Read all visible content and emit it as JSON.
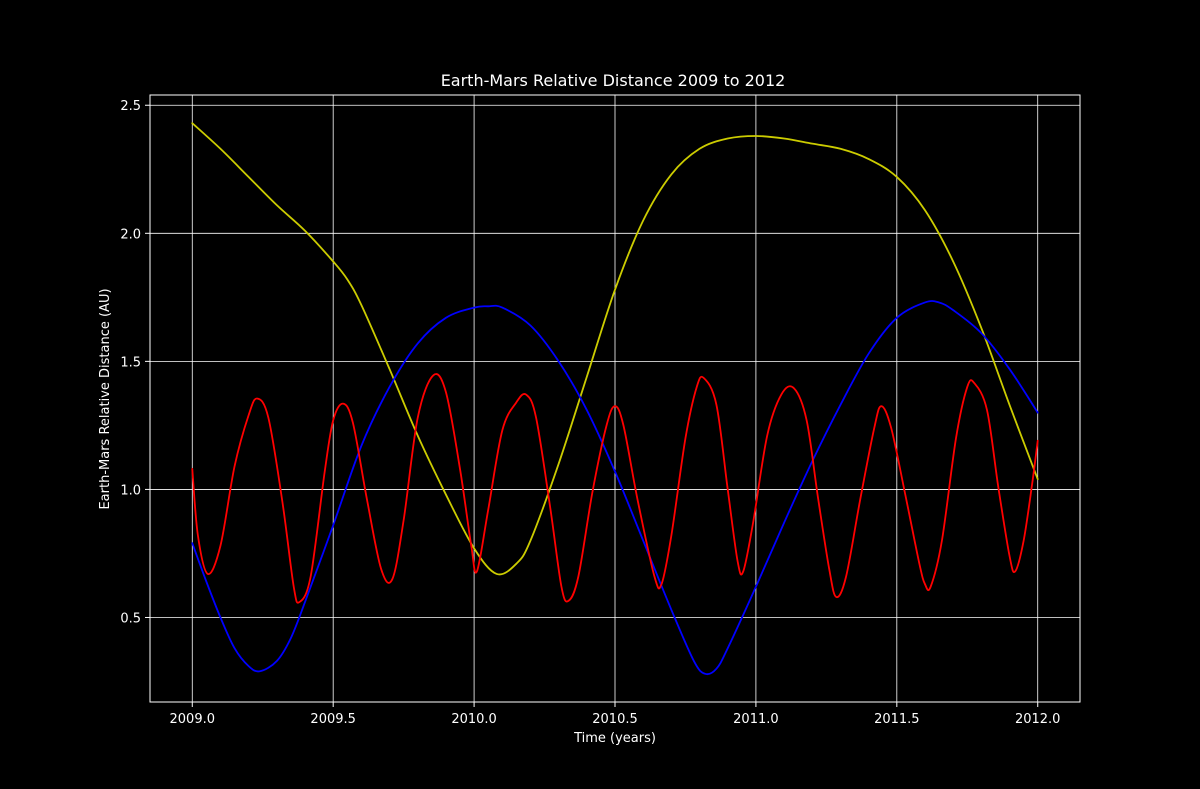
{
  "chart_data": {
    "type": "line",
    "title": "Earth-Mars Relative Distance 2009 to 2012",
    "xlabel": "Time (years)",
    "ylabel": "Earth-Mars Relative Distance (AU)",
    "xlim": [
      2008.85,
      2012.15
    ],
    "ylim": [
      0.17,
      2.54
    ],
    "grid": true,
    "background": "#000000",
    "axis_color": "#ffffff",
    "grid_color": "#ffffff",
    "x_ticks": [
      2009.0,
      2009.5,
      2010.0,
      2010.5,
      2011.0,
      2011.5,
      2012.0
    ],
    "x_tick_labels": [
      "2009.0",
      "2009.5",
      "2010.0",
      "2010.5",
      "2011.0",
      "2011.5",
      "2012.0"
    ],
    "y_ticks": [
      0.5,
      1.0,
      1.5,
      2.0,
      2.5
    ],
    "y_tick_labels": [
      "0.5",
      "1.0",
      "1.5",
      "2.0",
      "2.5"
    ],
    "series": [
      {
        "color": "#cccc00",
        "points": [
          [
            2009.0,
            2.43
          ],
          [
            2009.1,
            2.33
          ],
          [
            2009.2,
            2.22
          ],
          [
            2009.3,
            2.11
          ],
          [
            2009.4,
            2.01
          ],
          [
            2009.5,
            1.89
          ],
          [
            2009.55,
            1.82
          ],
          [
            2009.6,
            1.72
          ],
          [
            2009.7,
            1.47
          ],
          [
            2009.8,
            1.21
          ],
          [
            2009.9,
            0.98
          ],
          [
            2010.0,
            0.77
          ],
          [
            2010.08,
            0.67
          ],
          [
            2010.15,
            0.71
          ],
          [
            2010.2,
            0.8
          ],
          [
            2010.3,
            1.1
          ],
          [
            2010.4,
            1.44
          ],
          [
            2010.5,
            1.78
          ],
          [
            2010.6,
            2.05
          ],
          [
            2010.7,
            2.23
          ],
          [
            2010.8,
            2.33
          ],
          [
            2010.9,
            2.37
          ],
          [
            2011.0,
            2.38
          ],
          [
            2011.1,
            2.37
          ],
          [
            2011.2,
            2.35
          ],
          [
            2011.3,
            2.33
          ],
          [
            2011.4,
            2.29
          ],
          [
            2011.5,
            2.22
          ],
          [
            2011.6,
            2.09
          ],
          [
            2011.7,
            1.89
          ],
          [
            2011.8,
            1.63
          ],
          [
            2011.9,
            1.33
          ],
          [
            2012.0,
            1.04
          ]
        ]
      },
      {
        "color": "#0000ff",
        "points": [
          [
            2009.0,
            0.79
          ],
          [
            2009.05,
            0.64
          ],
          [
            2009.1,
            0.5
          ],
          [
            2009.15,
            0.38
          ],
          [
            2009.2,
            0.31
          ],
          [
            2009.24,
            0.29
          ],
          [
            2009.3,
            0.33
          ],
          [
            2009.35,
            0.42
          ],
          [
            2009.4,
            0.56
          ],
          [
            2009.5,
            0.86
          ],
          [
            2009.6,
            1.17
          ],
          [
            2009.7,
            1.4
          ],
          [
            2009.8,
            1.57
          ],
          [
            2009.9,
            1.67
          ],
          [
            2010.0,
            1.71
          ],
          [
            2010.05,
            1.715
          ],
          [
            2010.1,
            1.71
          ],
          [
            2010.2,
            1.64
          ],
          [
            2010.3,
            1.5
          ],
          [
            2010.4,
            1.31
          ],
          [
            2010.5,
            1.07
          ],
          [
            2010.6,
            0.8
          ],
          [
            2010.7,
            0.53
          ],
          [
            2010.78,
            0.33
          ],
          [
            2010.82,
            0.28
          ],
          [
            2010.86,
            0.3
          ],
          [
            2010.9,
            0.38
          ],
          [
            2011.0,
            0.62
          ],
          [
            2011.1,
            0.87
          ],
          [
            2011.2,
            1.11
          ],
          [
            2011.3,
            1.33
          ],
          [
            2011.4,
            1.53
          ],
          [
            2011.5,
            1.67
          ],
          [
            2011.6,
            1.73
          ],
          [
            2011.65,
            1.73
          ],
          [
            2011.7,
            1.7
          ],
          [
            2011.8,
            1.61
          ],
          [
            2011.9,
            1.47
          ],
          [
            2012.0,
            1.3
          ]
        ]
      },
      {
        "color": "#ff0000",
        "points": [
          [
            2009.0,
            1.08
          ],
          [
            2009.02,
            0.82
          ],
          [
            2009.055,
            0.67
          ],
          [
            2009.1,
            0.78
          ],
          [
            2009.15,
            1.09
          ],
          [
            2009.2,
            1.29
          ],
          [
            2009.23,
            1.355
          ],
          [
            2009.27,
            1.28
          ],
          [
            2009.32,
            0.95
          ],
          [
            2009.36,
            0.62
          ],
          [
            2009.38,
            0.56
          ],
          [
            2009.42,
            0.66
          ],
          [
            2009.47,
            1.07
          ],
          [
            2009.5,
            1.27
          ],
          [
            2009.535,
            1.335
          ],
          [
            2009.57,
            1.26
          ],
          [
            2009.62,
            0.96
          ],
          [
            2009.67,
            0.69
          ],
          [
            2009.71,
            0.65
          ],
          [
            2009.75,
            0.88
          ],
          [
            2009.8,
            1.28
          ],
          [
            2009.855,
            1.445
          ],
          [
            2009.9,
            1.38
          ],
          [
            2009.95,
            1.08
          ],
          [
            2009.99,
            0.78
          ],
          [
            2010.01,
            0.68
          ],
          [
            2010.05,
            0.92
          ],
          [
            2010.1,
            1.23
          ],
          [
            2010.15,
            1.34
          ],
          [
            2010.185,
            1.37
          ],
          [
            2010.22,
            1.28
          ],
          [
            2010.27,
            0.93
          ],
          [
            2010.31,
            0.62
          ],
          [
            2010.335,
            0.565
          ],
          [
            2010.37,
            0.66
          ],
          [
            2010.42,
            0.99
          ],
          [
            2010.47,
            1.25
          ],
          [
            2010.5,
            1.325
          ],
          [
            2010.53,
            1.25
          ],
          [
            2010.58,
            0.96
          ],
          [
            2010.64,
            0.66
          ],
          [
            2010.665,
            0.63
          ],
          [
            2010.7,
            0.82
          ],
          [
            2010.75,
            1.2
          ],
          [
            2010.79,
            1.4
          ],
          [
            2010.815,
            1.435
          ],
          [
            2010.86,
            1.33
          ],
          [
            2010.9,
            1.0
          ],
          [
            2010.935,
            0.72
          ],
          [
            2010.955,
            0.68
          ],
          [
            2010.99,
            0.87
          ],
          [
            2011.04,
            1.21
          ],
          [
            2011.09,
            1.37
          ],
          [
            2011.135,
            1.395
          ],
          [
            2011.18,
            1.27
          ],
          [
            2011.22,
            0.97
          ],
          [
            2011.26,
            0.69
          ],
          [
            2011.285,
            0.58
          ],
          [
            2011.32,
            0.66
          ],
          [
            2011.37,
            0.96
          ],
          [
            2011.42,
            1.24
          ],
          [
            2011.445,
            1.325
          ],
          [
            2011.48,
            1.24
          ],
          [
            2011.53,
            0.98
          ],
          [
            2011.58,
            0.71
          ],
          [
            2011.6,
            0.63
          ],
          [
            2011.62,
            0.62
          ],
          [
            2011.66,
            0.8
          ],
          [
            2011.71,
            1.2
          ],
          [
            2011.75,
            1.4
          ],
          [
            2011.775,
            1.415
          ],
          [
            2011.82,
            1.31
          ],
          [
            2011.86,
            1.01
          ],
          [
            2011.9,
            0.74
          ],
          [
            2011.92,
            0.68
          ],
          [
            2011.95,
            0.8
          ],
          [
            2011.98,
            1.02
          ],
          [
            2012.0,
            1.19
          ]
        ]
      }
    ]
  }
}
